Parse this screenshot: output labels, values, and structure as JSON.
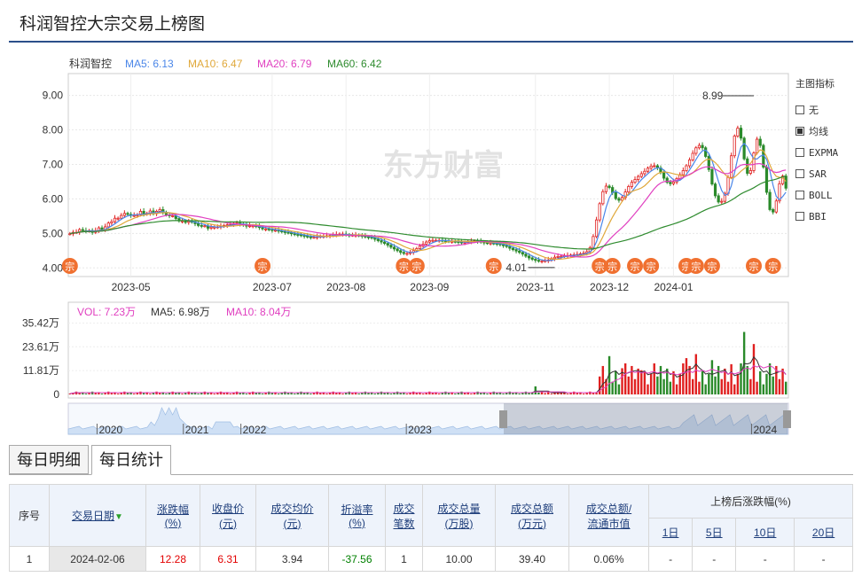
{
  "page": {
    "title": "科润智控大宗交易上榜图"
  },
  "chart_data": {
    "type": "candlestick",
    "stock_name": "科润智控",
    "legend": [
      {
        "label": "MA5: 6.13",
        "color": "#4a86e8"
      },
      {
        "label": "MA10: 6.47",
        "color": "#e0a83a"
      },
      {
        "label": "MA20: 6.79",
        "color": "#e040c0"
      },
      {
        "label": "MA60: 6.42",
        "color": "#2e8b2e"
      }
    ],
    "y_ticks": [
      4.0,
      5.0,
      6.0,
      7.0,
      8.0,
      9.0
    ],
    "y_tick_labels": [
      "4.00",
      "5.00",
      "6.00",
      "7.00",
      "8.00",
      "9.00"
    ],
    "ylim": [
      3.75,
      9.4
    ],
    "x_tick_labels": [
      "2023-05",
      "2023-07",
      "2023-08",
      "2023-09",
      "2023-11",
      "2023-12",
      "2024-01"
    ],
    "x_tick_positions": [
      19,
      63,
      86,
      112,
      145,
      168,
      188
    ],
    "n_days": 224,
    "close": [
      4.99,
      5.03,
      5.03,
      5.11,
      5.08,
      5.07,
      5.08,
      5.03,
      5.08,
      5.16,
      5.11,
      5.19,
      5.3,
      5.34,
      5.44,
      5.44,
      5.52,
      5.58,
      5.55,
      5.52,
      5.52,
      5.54,
      5.64,
      5.56,
      5.58,
      5.65,
      5.57,
      5.64,
      5.69,
      5.61,
      5.54,
      5.51,
      5.51,
      5.43,
      5.36,
      5.36,
      5.32,
      5.35,
      5.33,
      5.28,
      5.23,
      5.22,
      5.22,
      5.15,
      5.18,
      5.18,
      5.19,
      5.21,
      5.23,
      5.25,
      5.26,
      5.29,
      5.3,
      5.27,
      5.24,
      5.21,
      5.22,
      5.22,
      5.2,
      5.17,
      5.13,
      5.13,
      5.11,
      5.09,
      5.09,
      5.07,
      5.05,
      5.03,
      5.02,
      4.99,
      4.97,
      4.96,
      4.94,
      4.92,
      4.9,
      4.89,
      4.89,
      4.9,
      4.92,
      4.92,
      4.93,
      4.94,
      4.96,
      4.97,
      4.98,
      4.98,
      4.96,
      4.95,
      4.95,
      4.95,
      4.94,
      4.92,
      4.9,
      4.89,
      4.87,
      4.83,
      4.79,
      4.75,
      4.71,
      4.66,
      4.6,
      4.55,
      4.5,
      4.45,
      4.42,
      4.42,
      4.45,
      4.5,
      4.56,
      4.63,
      4.69,
      4.75,
      4.79,
      4.8,
      4.8,
      4.8,
      4.79,
      4.78,
      4.77,
      4.77,
      4.76,
      4.75,
      4.73,
      4.74,
      4.76,
      4.77,
      4.78,
      4.77,
      4.75,
      4.73,
      4.72,
      4.72,
      4.71,
      4.7,
      4.67,
      4.65,
      4.62,
      4.57,
      4.53,
      4.49,
      4.45,
      4.4,
      4.34,
      4.29,
      4.25,
      4.22,
      4.2,
      4.2,
      4.21,
      4.23,
      4.27,
      4.31,
      4.33,
      4.34,
      4.35,
      4.36,
      4.37,
      4.38,
      4.39,
      4.41,
      4.43,
      4.47,
      4.59,
      4.91,
      5.39,
      5.86,
      6.21,
      6.37,
      6.33,
      6.18,
      6.01,
      5.96,
      6.04,
      6.2,
      6.36,
      6.48,
      6.56,
      6.65,
      6.73,
      6.8,
      6.89,
      6.95,
      6.96,
      6.9,
      6.76,
      6.6,
      6.48,
      6.44,
      6.49,
      6.59,
      6.7,
      6.82,
      6.96,
      7.13,
      7.32,
      7.48,
      7.55,
      7.48,
      7.23,
      6.85,
      6.43,
      6.09,
      5.91,
      5.93,
      6.16,
      6.62,
      7.25,
      7.82,
      8.05,
      7.76,
      7.16,
      6.74,
      6.82,
      7.33,
      7.73,
      7.55,
      6.92,
      6.19,
      5.69,
      5.62,
      5.94,
      6.44,
      6.66,
      6.31
    ],
    "high_annotation": {
      "label": "8.99",
      "value": 8.99,
      "day": 213
    },
    "low_annotation": {
      "label": "4.01",
      "value": 4.01,
      "day": 151
    },
    "dt_markers": {
      "label": "宗",
      "days": [
        0,
        60,
        104,
        108,
        132,
        165,
        169,
        176,
        181,
        192,
        195,
        200,
        213,
        219
      ]
    },
    "volume": {
      "legend": [
        {
          "label": "VOL: 7.23万",
          "color": "#e040c0"
        },
        {
          "label": "MA5: 6.98万",
          "color": "#333333"
        },
        {
          "label": "MA10: 8.04万",
          "color": "#e040c0"
        }
      ],
      "y_tick_labels": [
        "35.42万",
        "23.61万",
        "11.81万",
        "0"
      ],
      "y_ticks": [
        35.42,
        23.61,
        11.81,
        0
      ],
      "ymax": 36.5,
      "spike_days": [
        145,
        168,
        172,
        178,
        192,
        195,
        200,
        206,
        210,
        213
      ],
      "spike_values": [
        4,
        19,
        13,
        12,
        18,
        20,
        17,
        15,
        31,
        25
      ]
    },
    "navigator": {
      "labels": [
        "2020",
        "2021",
        "2022",
        "2023",
        "2024"
      ],
      "label_positions": [
        0.04,
        0.16,
        0.24,
        0.47,
        0.95
      ]
    }
  },
  "indicators": {
    "title": "主图指标",
    "options": [
      {
        "label": "无",
        "checked": false
      },
      {
        "label": "均线",
        "checked": true
      },
      {
        "label": "EXPMA",
        "checked": false
      },
      {
        "label": "SAR",
        "checked": false
      },
      {
        "label": "BOLL",
        "checked": false
      },
      {
        "label": "BBI",
        "checked": false
      }
    ]
  },
  "watermark": "东方财富",
  "tabs": [
    "每日明细",
    "每日统计"
  ],
  "table": {
    "headers": {
      "seq": "序号",
      "date": "交易日期",
      "change": "涨跌幅\n(%)",
      "close": "收盘价\n(元)",
      "avg": "成交均价\n(元)",
      "discount": "折溢率\n(%)",
      "count": "成交\n笔数",
      "vol": "成交总量\n(万股)",
      "amt": "成交总额\n(万元)",
      "ratio": "成交总额/\n流通市值",
      "after": "上榜后涨跌幅(%)",
      "d1": "1日",
      "d5": "5日",
      "d10": "10日",
      "d20": "20日"
    },
    "rows": [
      {
        "seq": "1",
        "date": "2024-02-06",
        "change": "12.28",
        "close": "6.31",
        "avg": "3.94",
        "discount": "-37.56",
        "count": "1",
        "vol": "10.00",
        "amt": "39.40",
        "ratio": "0.06%",
        "d1": "-",
        "d5": "-",
        "d10": "-",
        "d20": "-"
      }
    ]
  }
}
